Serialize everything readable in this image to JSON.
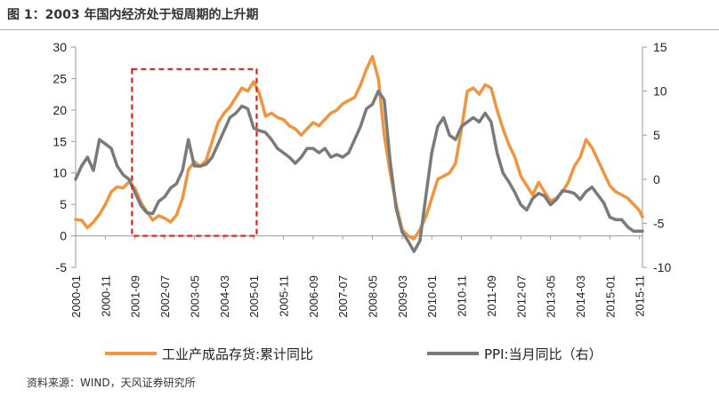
{
  "title": "图 1：2003 年国内经济处于短周期的上升期",
  "source": "资料来源：WIND，天风证券研究所",
  "colors": {
    "orange": "#f0953f",
    "gray": "#7a7a7a",
    "highlight": "#e0201b",
    "axis": "#999999"
  },
  "chart_data": {
    "type": "line",
    "x_tick_labels": [
      "2000-01",
      "2000-11",
      "2001-09",
      "2002-07",
      "2003-05",
      "2004-03",
      "2005-01",
      "2005-11",
      "2006-09",
      "2007-07",
      "2008-05",
      "2009-03",
      "2010-01",
      "2010-11",
      "2011-09",
      "2012-07",
      "2013-05",
      "2014-03",
      "2015-01",
      "2015-11"
    ],
    "left_axis": {
      "min": -5,
      "max": 30,
      "ticks": [
        "30",
        "25",
        "20",
        "15",
        "10",
        "5",
        "0",
        "-5"
      ]
    },
    "right_axis": {
      "min": -10,
      "max": 15,
      "ticks": [
        "15",
        "10",
        "5",
        "0",
        "-5",
        "-10"
      ]
    },
    "highlight_box": {
      "x_start": "2001-08",
      "x_end": "2005-02",
      "y_min": 0,
      "y_max": 26.5
    },
    "series": [
      {
        "name": "工业产成品存货:累计同比",
        "axis": "left",
        "points": [
          [
            "2000-01",
            2.6
          ],
          [
            "2000-03",
            2.5
          ],
          [
            "2000-05",
            1.3
          ],
          [
            "2000-07",
            2.2
          ],
          [
            "2000-09",
            3.4
          ],
          [
            "2000-11",
            5.0
          ],
          [
            "2001-01",
            7.0
          ],
          [
            "2001-03",
            7.8
          ],
          [
            "2001-05",
            7.6
          ],
          [
            "2001-07",
            8.6
          ],
          [
            "2001-09",
            7.5
          ],
          [
            "2001-11",
            5.3
          ],
          [
            "2002-01",
            3.8
          ],
          [
            "2002-03",
            2.5
          ],
          [
            "2002-05",
            3.2
          ],
          [
            "2002-07",
            2.8
          ],
          [
            "2002-09",
            2.2
          ],
          [
            "2002-11",
            3.3
          ],
          [
            "2003-01",
            6.0
          ],
          [
            "2003-03",
            10.5
          ],
          [
            "2003-05",
            11.8
          ],
          [
            "2003-07",
            11.0
          ],
          [
            "2003-09",
            12.0
          ],
          [
            "2003-11",
            15.0
          ],
          [
            "2004-01",
            18.0
          ],
          [
            "2004-03",
            19.5
          ],
          [
            "2004-05",
            20.5
          ],
          [
            "2004-07",
            22.0
          ],
          [
            "2004-09",
            23.5
          ],
          [
            "2004-11",
            23.0
          ],
          [
            "2005-01",
            24.5
          ],
          [
            "2005-03",
            22.5
          ],
          [
            "2005-05",
            19.0
          ],
          [
            "2005-07",
            19.5
          ],
          [
            "2005-09",
            18.8
          ],
          [
            "2005-11",
            18.5
          ],
          [
            "2006-01",
            17.5
          ],
          [
            "2006-03",
            17.0
          ],
          [
            "2006-05",
            16.0
          ],
          [
            "2006-07",
            17.0
          ],
          [
            "2006-09",
            18.0
          ],
          [
            "2006-11",
            17.5
          ],
          [
            "2007-01",
            18.5
          ],
          [
            "2007-03",
            19.5
          ],
          [
            "2007-05",
            20.0
          ],
          [
            "2007-07",
            21.0
          ],
          [
            "2007-09",
            21.5
          ],
          [
            "2007-11",
            22.0
          ],
          [
            "2008-01",
            24.0
          ],
          [
            "2008-03",
            26.5
          ],
          [
            "2008-05",
            28.5
          ],
          [
            "2008-07",
            25.0
          ],
          [
            "2008-09",
            16.0
          ],
          [
            "2008-11",
            10.0
          ],
          [
            "2009-01",
            5.0
          ],
          [
            "2009-03",
            1.0
          ],
          [
            "2009-05",
            0.0
          ],
          [
            "2009-07",
            -0.5
          ],
          [
            "2009-09",
            1.0
          ],
          [
            "2009-11",
            3.0
          ],
          [
            "2010-01",
            6.0
          ],
          [
            "2010-03",
            9.0
          ],
          [
            "2010-05",
            9.5
          ],
          [
            "2010-07",
            10.0
          ],
          [
            "2010-09",
            11.5
          ],
          [
            "2010-11",
            17.0
          ],
          [
            "2011-01",
            23.0
          ],
          [
            "2011-03",
            23.5
          ],
          [
            "2011-05",
            22.5
          ],
          [
            "2011-07",
            24.0
          ],
          [
            "2011-09",
            23.5
          ],
          [
            "2011-11",
            20.0
          ],
          [
            "2012-01",
            17.0
          ],
          [
            "2012-03",
            14.5
          ],
          [
            "2012-05",
            12.5
          ],
          [
            "2012-07",
            9.5
          ],
          [
            "2012-09",
            8.0
          ],
          [
            "2012-11",
            6.5
          ],
          [
            "2013-01",
            8.5
          ],
          [
            "2013-03",
            7.0
          ],
          [
            "2013-05",
            5.5
          ],
          [
            "2013-07",
            6.0
          ],
          [
            "2013-09",
            7.0
          ],
          [
            "2013-11",
            8.5
          ],
          [
            "2014-01",
            11.0
          ],
          [
            "2014-03",
            12.5
          ],
          [
            "2014-05",
            15.3
          ],
          [
            "2014-07",
            14.0
          ],
          [
            "2014-09",
            12.0
          ],
          [
            "2014-11",
            10.0
          ],
          [
            "2015-01",
            8.0
          ],
          [
            "2015-03",
            7.0
          ],
          [
            "2015-05",
            6.5
          ],
          [
            "2015-07",
            6.0
          ],
          [
            "2015-09",
            5.0
          ],
          [
            "2015-11",
            4.0
          ],
          [
            "2015-12",
            3.0
          ]
        ]
      },
      {
        "name": "PPI:当月同比（右）",
        "axis": "right",
        "points": [
          [
            "2000-01",
            0.0
          ],
          [
            "2000-03",
            1.5
          ],
          [
            "2000-05",
            2.5
          ],
          [
            "2000-07",
            1.0
          ],
          [
            "2000-09",
            4.5
          ],
          [
            "2000-11",
            4.0
          ],
          [
            "2001-01",
            3.5
          ],
          [
            "2001-03",
            1.5
          ],
          [
            "2001-05",
            0.5
          ],
          [
            "2001-07",
            0.0
          ],
          [
            "2001-09",
            -1.5
          ],
          [
            "2001-11",
            -3.0
          ],
          [
            "2002-01",
            -3.8
          ],
          [
            "2002-03",
            -3.9
          ],
          [
            "2002-05",
            -2.5
          ],
          [
            "2002-07",
            -2.0
          ],
          [
            "2002-09",
            -1.0
          ],
          [
            "2002-11",
            -0.5
          ],
          [
            "2003-01",
            1.0
          ],
          [
            "2003-03",
            4.5
          ],
          [
            "2003-05",
            1.5
          ],
          [
            "2003-07",
            1.5
          ],
          [
            "2003-09",
            1.7
          ],
          [
            "2003-11",
            2.5
          ],
          [
            "2004-01",
            4.0
          ],
          [
            "2004-03",
            5.5
          ],
          [
            "2004-05",
            7.0
          ],
          [
            "2004-07",
            7.5
          ],
          [
            "2004-09",
            8.3
          ],
          [
            "2004-11",
            8.0
          ],
          [
            "2005-01",
            5.8
          ],
          [
            "2005-03",
            5.5
          ],
          [
            "2005-05",
            5.3
          ],
          [
            "2005-07",
            4.5
          ],
          [
            "2005-09",
            3.5
          ],
          [
            "2005-11",
            3.0
          ],
          [
            "2006-01",
            2.5
          ],
          [
            "2006-03",
            1.8
          ],
          [
            "2006-05",
            2.5
          ],
          [
            "2006-07",
            3.5
          ],
          [
            "2006-09",
            3.5
          ],
          [
            "2006-11",
            3.0
          ],
          [
            "2007-01",
            3.5
          ],
          [
            "2007-03",
            2.5
          ],
          [
            "2007-05",
            2.8
          ],
          [
            "2007-07",
            2.5
          ],
          [
            "2007-09",
            3.0
          ],
          [
            "2007-11",
            4.5
          ],
          [
            "2008-01",
            6.0
          ],
          [
            "2008-03",
            8.0
          ],
          [
            "2008-05",
            8.5
          ],
          [
            "2008-07",
            10.0
          ],
          [
            "2008-09",
            9.0
          ],
          [
            "2008-11",
            2.0
          ],
          [
            "2009-01",
            -3.3
          ],
          [
            "2009-03",
            -6.0
          ],
          [
            "2009-05",
            -7.0
          ],
          [
            "2009-07",
            -8.2
          ],
          [
            "2009-09",
            -7.0
          ],
          [
            "2009-11",
            -2.0
          ],
          [
            "2010-01",
            3.0
          ],
          [
            "2010-03",
            6.0
          ],
          [
            "2010-05",
            7.0
          ],
          [
            "2010-07",
            5.0
          ],
          [
            "2010-09",
            4.5
          ],
          [
            "2010-11",
            6.0
          ],
          [
            "2011-01",
            6.5
          ],
          [
            "2011-03",
            7.0
          ],
          [
            "2011-05",
            6.5
          ],
          [
            "2011-07",
            7.5
          ],
          [
            "2011-09",
            6.5
          ],
          [
            "2011-11",
            3.0
          ],
          [
            "2012-01",
            0.7
          ],
          [
            "2012-03",
            -0.3
          ],
          [
            "2012-05",
            -1.5
          ],
          [
            "2012-07",
            -2.9
          ],
          [
            "2012-09",
            -3.5
          ],
          [
            "2012-11",
            -2.2
          ],
          [
            "2013-01",
            -1.6
          ],
          [
            "2013-03",
            -1.9
          ],
          [
            "2013-05",
            -2.9
          ],
          [
            "2013-07",
            -2.3
          ],
          [
            "2013-09",
            -1.3
          ],
          [
            "2013-11",
            -1.4
          ],
          [
            "2014-01",
            -1.6
          ],
          [
            "2014-03",
            -2.3
          ],
          [
            "2014-05",
            -1.4
          ],
          [
            "2014-07",
            -0.9
          ],
          [
            "2014-09",
            -1.8
          ],
          [
            "2014-11",
            -2.7
          ],
          [
            "2015-01",
            -4.3
          ],
          [
            "2015-03",
            -4.6
          ],
          [
            "2015-05",
            -4.6
          ],
          [
            "2015-07",
            -5.4
          ],
          [
            "2015-09",
            -5.9
          ],
          [
            "2015-11",
            -5.9
          ],
          [
            "2015-12",
            -5.9
          ]
        ]
      }
    ]
  }
}
